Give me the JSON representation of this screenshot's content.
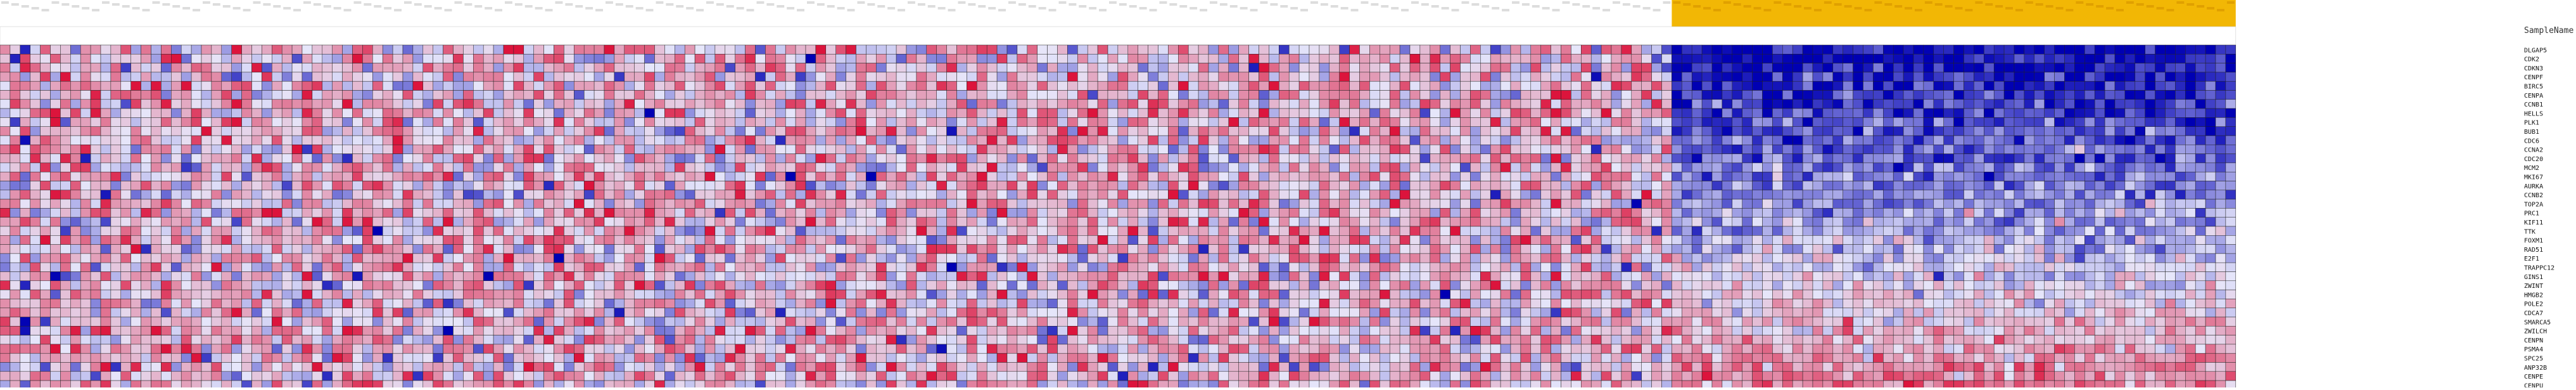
{
  "chart_data": {
    "type": "heatmap",
    "row_header_label": "SampleName",
    "row_labels": [
      "DLGAP5",
      "CDK2",
      "CDKN3",
      "CENPF",
      "BIRC5",
      "CENPA",
      "CCNB1",
      "HELLS",
      "PLK1",
      "BUB1",
      "CDC6",
      "CCNA2",
      "CDC20",
      "MCM2",
      "MKI67",
      "AURKA",
      "CCNB2",
      "TOP2A",
      "PRC1",
      "KIF11",
      "TTK",
      "FOXM1",
      "RAD51",
      "E2F1",
      "TRAPPC12",
      "GINS1",
      "ZWINT",
      "HMGB2",
      "POLE2",
      "CDCA7",
      "SMARCA5",
      "ZWILCH",
      "CENPN",
      "PSMA4",
      "SPC25",
      "ANP32B",
      "CENPE",
      "CENPU"
    ],
    "column_groups": [
      {
        "name": "",
        "count": 166,
        "header_color": "#ffffff"
      },
      {
        "name": "",
        "count": 56,
        "header_color": "#f2b705"
      }
    ],
    "color_scale": {
      "low": "#0000b3",
      "mid": "#e6e6fa",
      "high": "#dc143c"
    },
    "value_range": [
      -1,
      1
    ],
    "seed": 20240601
  }
}
